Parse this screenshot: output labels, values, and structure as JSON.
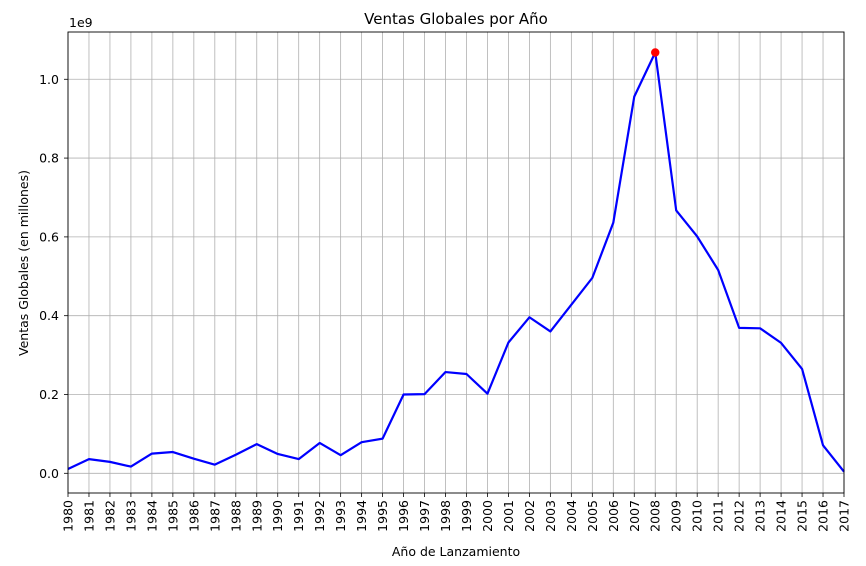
{
  "chart_data": {
    "type": "line",
    "title": "Ventas Globales por Año",
    "xlabel": "Año de Lanzamiento",
    "ylabel": "Ventas Globales (en millones)",
    "y_offset_label": "1e9",
    "x": [
      1980,
      1981,
      1982,
      1983,
      1984,
      1985,
      1986,
      1987,
      1988,
      1989,
      1990,
      1991,
      1992,
      1993,
      1994,
      1995,
      1996,
      1997,
      1998,
      1999,
      2000,
      2001,
      2002,
      2003,
      2004,
      2005,
      2006,
      2007,
      2008,
      2009,
      2010,
      2011,
      2012,
      2013,
      2014,
      2015,
      2016,
      2017
    ],
    "series": [
      {
        "name": "",
        "color": "#0000ff",
        "values": [
          0.011,
          0.036,
          0.029,
          0.017,
          0.05,
          0.054,
          0.037,
          0.022,
          0.047,
          0.074,
          0.049,
          0.036,
          0.077,
          0.046,
          0.079,
          0.088,
          0.2,
          0.201,
          0.257,
          0.252,
          0.202,
          0.332,
          0.396,
          0.36,
          0.428,
          0.496,
          0.636,
          0.956,
          1.068,
          0.667,
          0.601,
          0.516,
          0.369,
          0.368,
          0.331,
          0.265,
          0.071,
          0.004
        ]
      }
    ],
    "highlight": {
      "x": 2008,
      "y": 1.068,
      "color": "#ff0000"
    },
    "xlim": [
      1980,
      2017
    ],
    "ylim": [
      -0.05,
      1.12
    ],
    "yticks": [
      0.0,
      0.2,
      0.4,
      0.6,
      0.8,
      1.0
    ],
    "ytick_labels": [
      "0.0",
      "0.2",
      "0.4",
      "0.6",
      "0.8",
      "1.0"
    ],
    "xtick_labels": [
      "1980",
      "1981",
      "1982",
      "1983",
      "1984",
      "1985",
      "1986",
      "1987",
      "1988",
      "1989",
      "1990",
      "1991",
      "1992",
      "1993",
      "1994",
      "1995",
      "1996",
      "1997",
      "1998",
      "1999",
      "2000",
      "2001",
      "2002",
      "2003",
      "2004",
      "2005",
      "2006",
      "2007",
      "2008",
      "2009",
      "2010",
      "2011",
      "2012",
      "2013",
      "2014",
      "2015",
      "2016",
      "2017"
    ],
    "grid": true,
    "legend": "none"
  }
}
